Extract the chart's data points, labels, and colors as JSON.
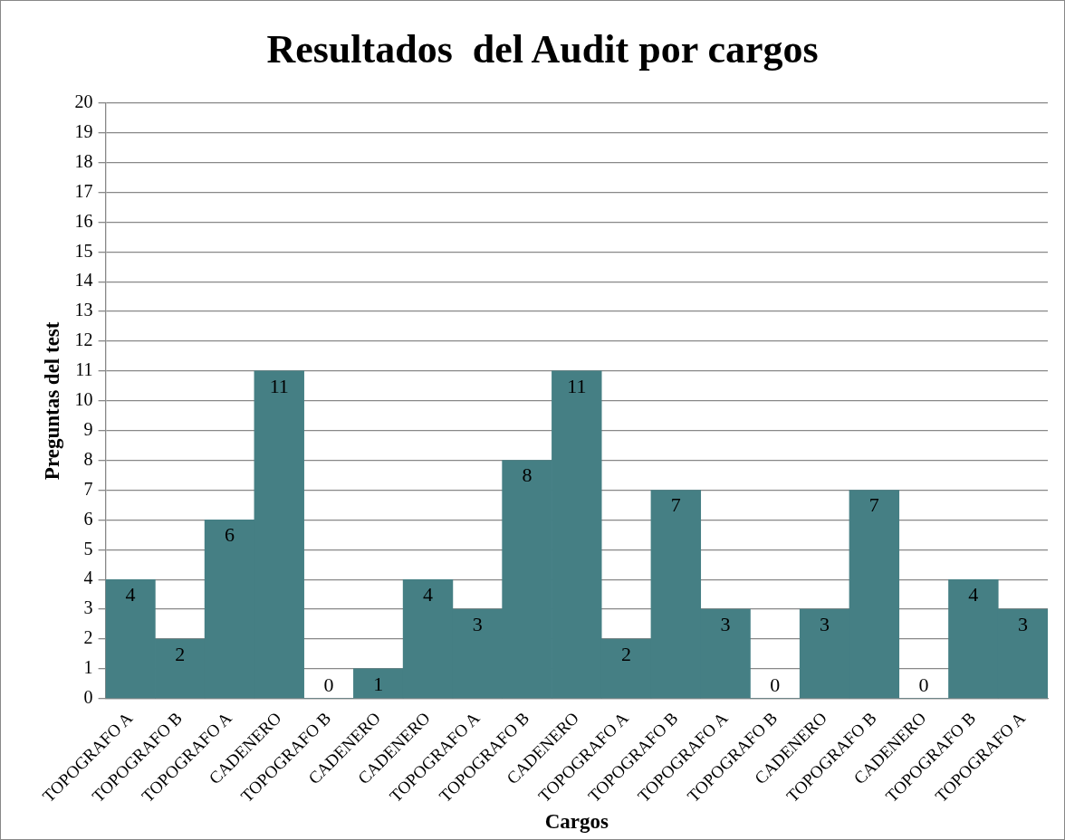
{
  "chart_data": {
    "type": "bar",
    "title": "Resultados  del Audit por cargos",
    "xlabel": "Cargos",
    "ylabel": "Preguntas del test",
    "categories": [
      "TOPOGRAFO A",
      "TOPOGRAFO B",
      "TOPOGRAFO A",
      "CADENERO",
      "TOPOGRAFO B",
      "CADENERO",
      "CADENERO",
      "TOPOGRAFO A",
      "TOPOGRAFO B",
      "CADENERO",
      "TOPOGRAFO A",
      "TOPOGRAFO B",
      "TOPOGRAFO A",
      "TOPOGRAFO B",
      "CADENERO",
      "TOPOGRAFO B",
      "CADENERO",
      "TOPOGRAFO B",
      "TOPOGRAFO A"
    ],
    "values": [
      4,
      2,
      6,
      11,
      0,
      1,
      4,
      3,
      8,
      11,
      2,
      7,
      3,
      0,
      3,
      7,
      0,
      4,
      3
    ],
    "color": "#457f84",
    "ylim": [
      0,
      20
    ],
    "yticks": [
      0,
      1,
      2,
      3,
      4,
      5,
      6,
      7,
      8,
      9,
      10,
      11,
      12,
      13,
      14,
      15,
      16,
      17,
      18,
      19,
      20
    ],
    "grid": "y",
    "data_labels": true,
    "legend": false
  }
}
